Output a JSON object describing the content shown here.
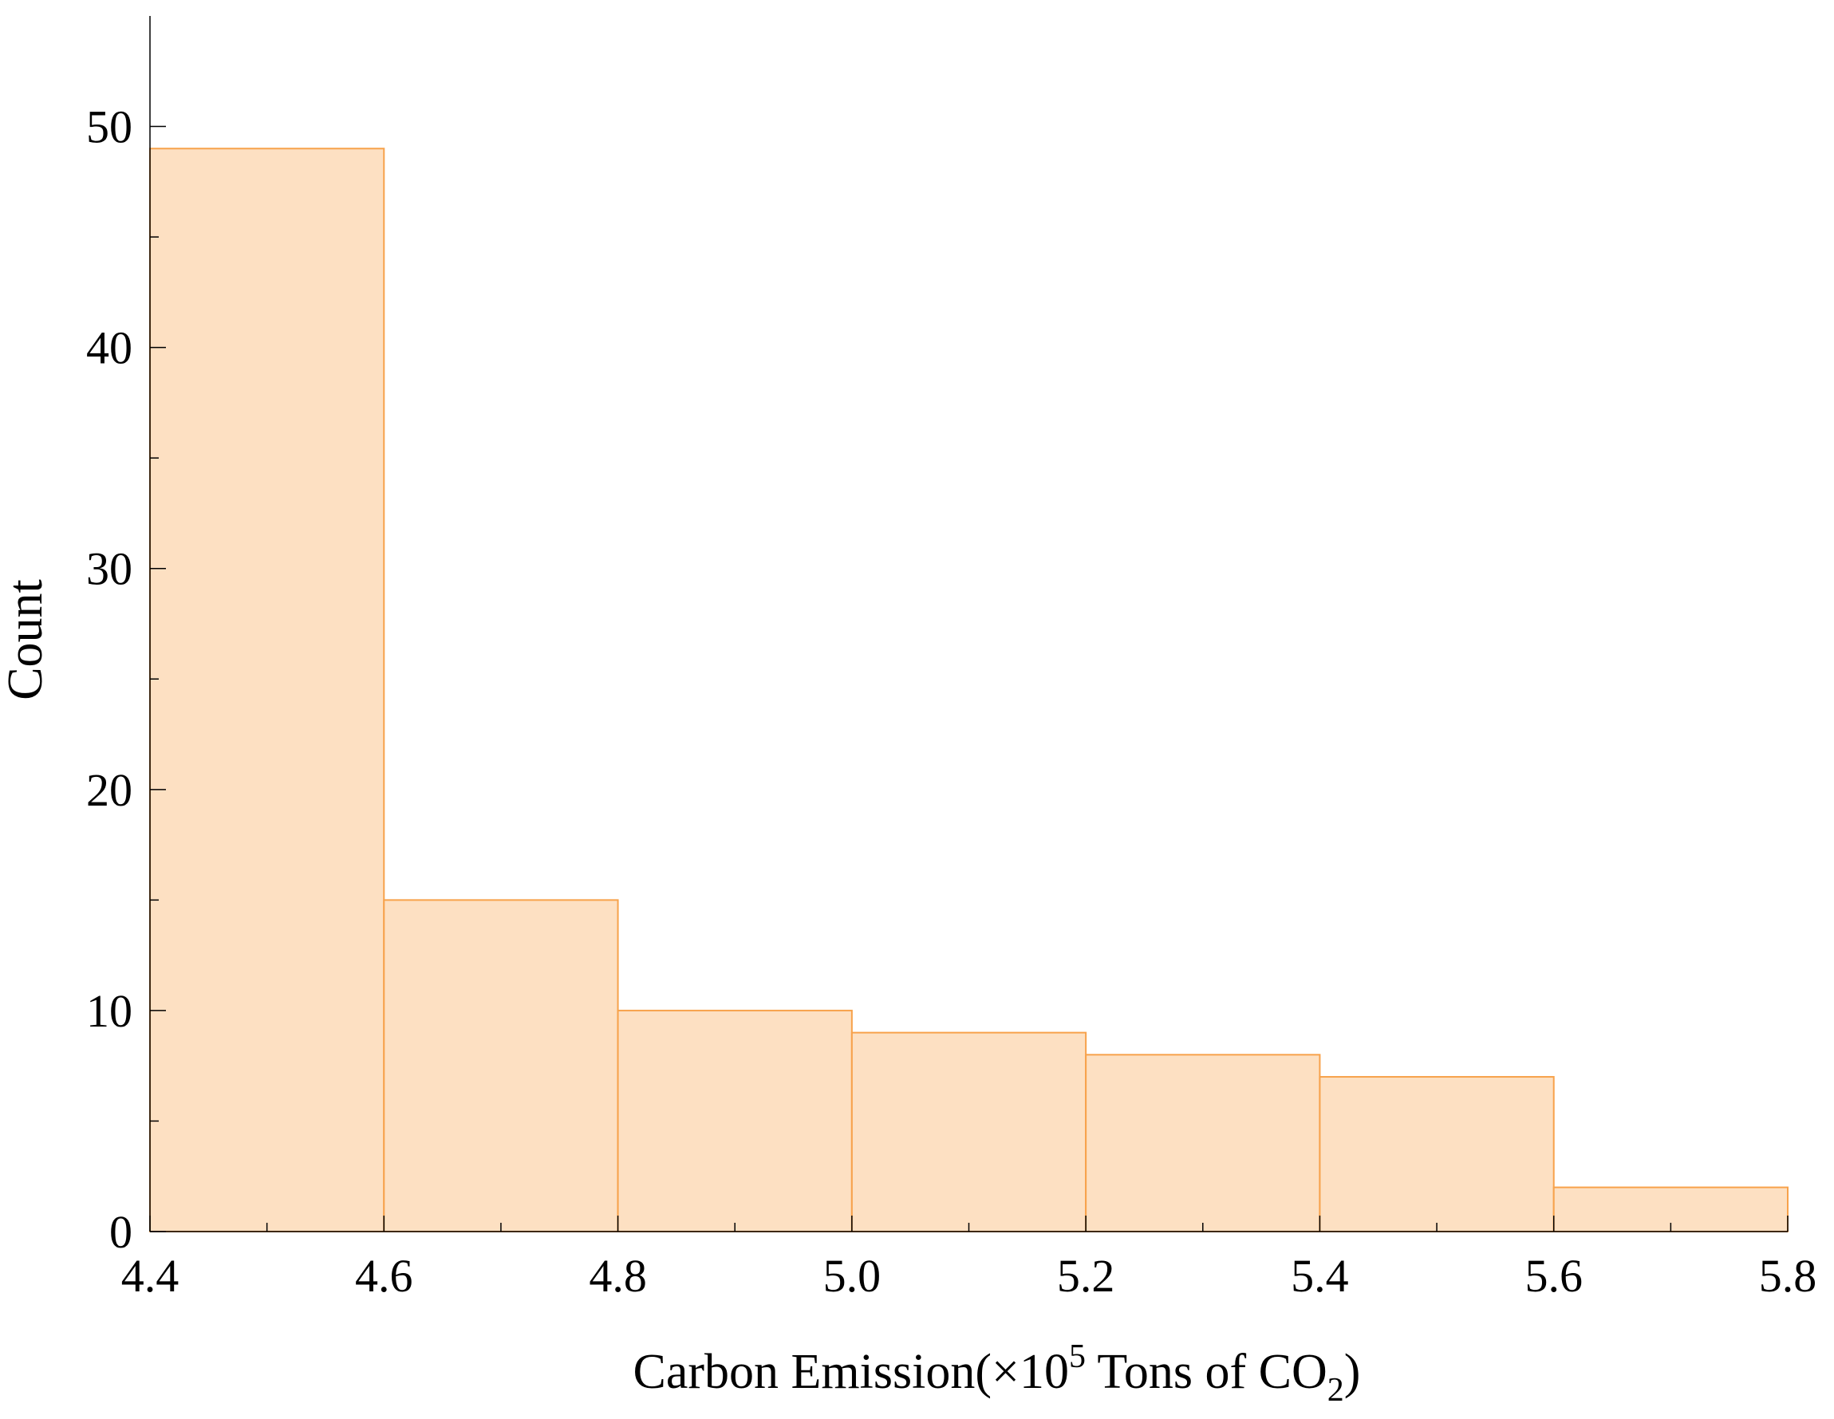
{
  "colors": {
    "bar_fill": "#fde0c2",
    "bar_stroke": "#f7a24b",
    "axis": "#000000"
  },
  "chart_data": {
    "type": "bar",
    "title": "",
    "xlabel": "Carbon Emission(×10",
    "xlabel_sup": "5",
    "xlabel_mid": " Tons of CO",
    "xlabel_sub": "2",
    "xlabel_end": ")",
    "ylabel": "Count",
    "bin_edges": [
      4.4,
      4.6,
      4.8,
      5.0,
      5.2,
      5.4,
      5.6,
      5.8
    ],
    "values": [
      49,
      15,
      10,
      9,
      8,
      7,
      2
    ],
    "xlim": [
      4.4,
      5.8
    ],
    "ylim": [
      0,
      55
    ],
    "x_ticks": [
      "4.4",
      "4.6",
      "4.8",
      "5.0",
      "5.2",
      "5.4",
      "5.6",
      "5.8"
    ],
    "y_ticks": [
      "0",
      "10",
      "20",
      "30",
      "40",
      "50"
    ],
    "grid": false,
    "legend": "none"
  }
}
